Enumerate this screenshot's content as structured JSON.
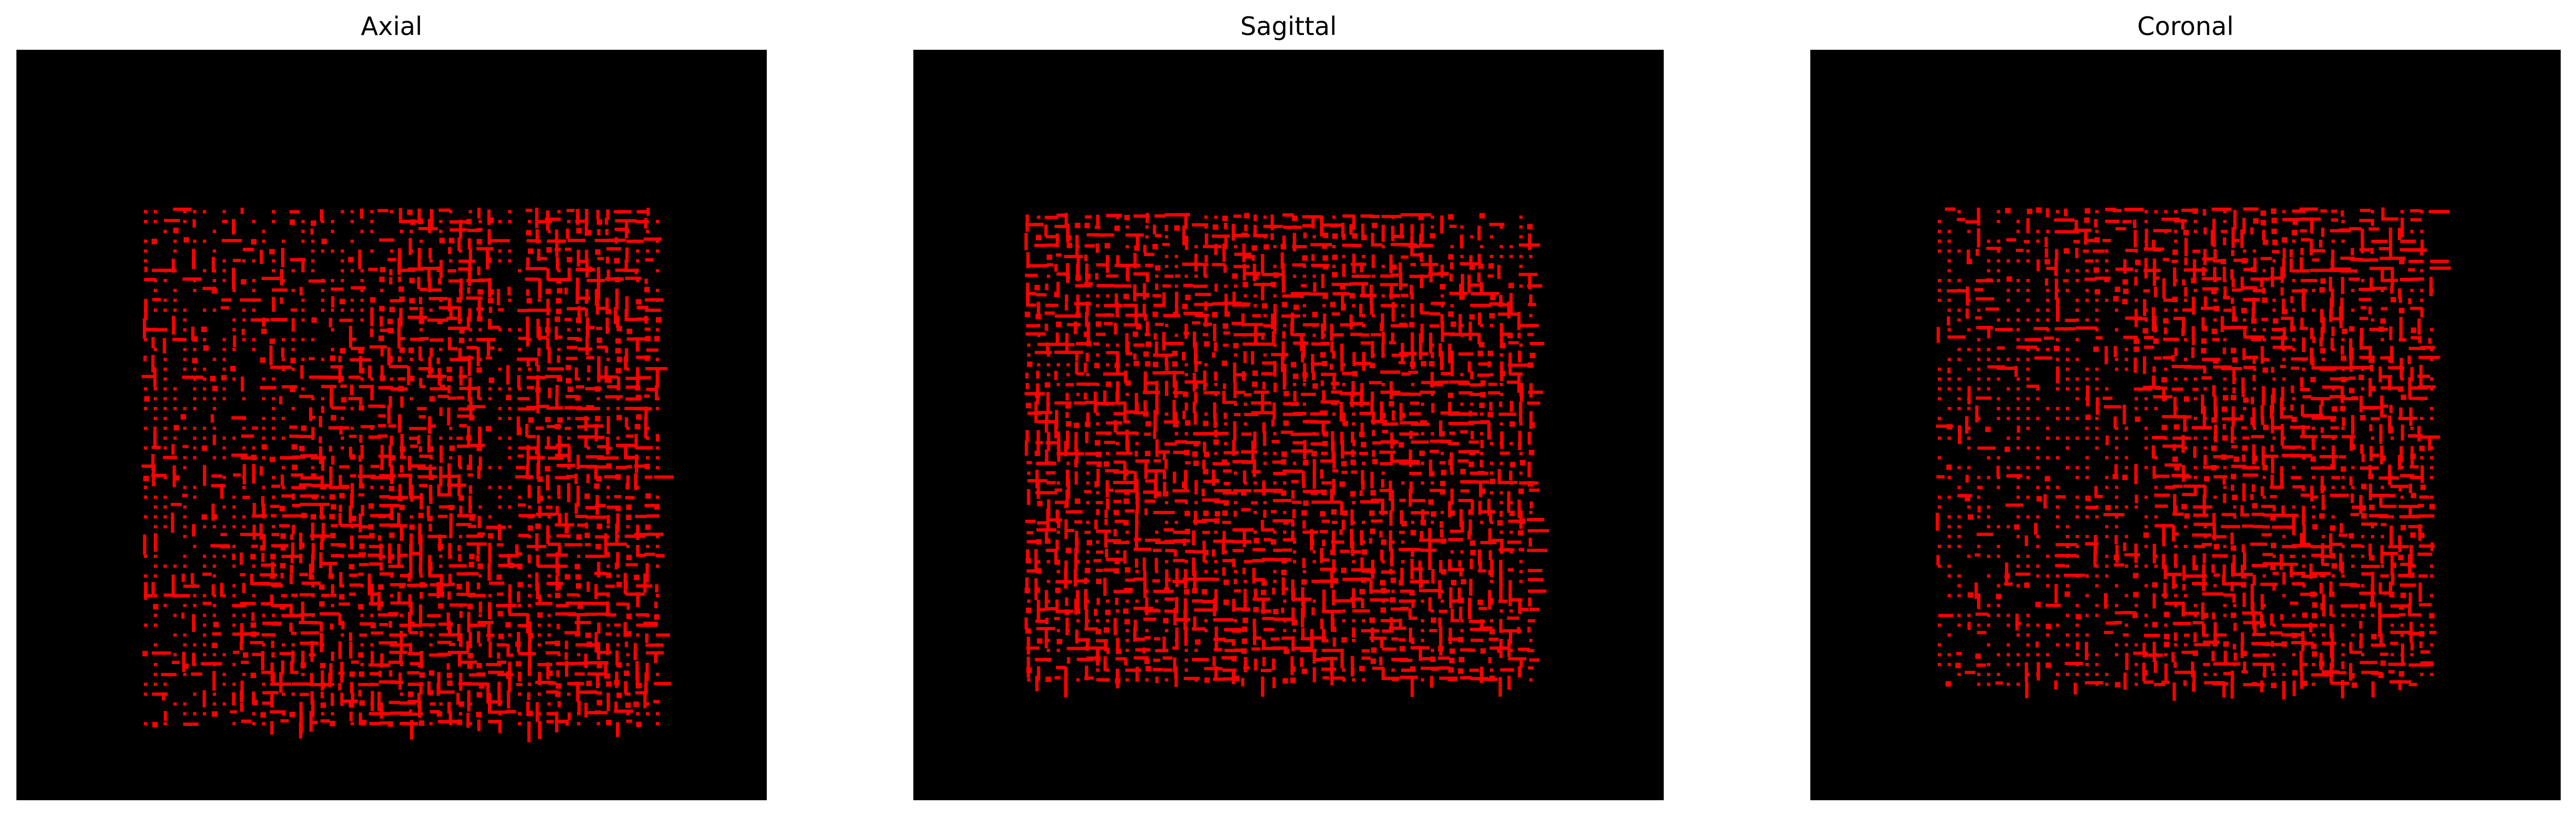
{
  "colors": {
    "background": "#000000",
    "overlay": "#ff0000",
    "page": "#ffffff"
  },
  "panels": [
    {
      "title": "Axial"
    },
    {
      "title": "Sagittal"
    },
    {
      "title": "Coronal"
    }
  ]
}
